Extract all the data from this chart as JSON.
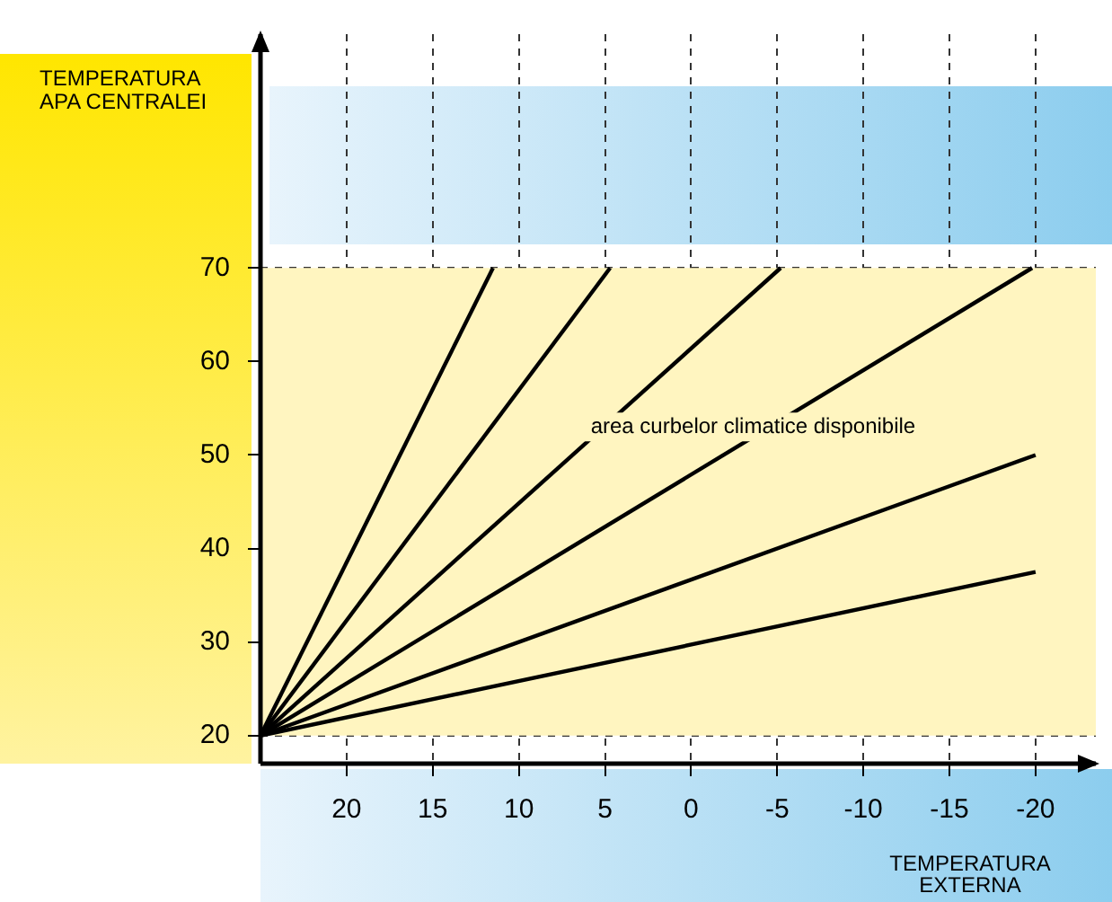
{
  "chart_data": {
    "type": "line",
    "xlabel": "TEMPERATURA\nEXTERNA",
    "ylabel": "TEMPERATURA\nAPA CENTRALEI",
    "xlim": [
      25,
      -23.5
    ],
    "xticks": [
      20,
      15,
      10,
      5,
      0,
      -5,
      -10,
      -15,
      -20
    ],
    "ylim": [
      17,
      95
    ],
    "yticks": [
      20,
      30,
      40,
      50,
      60,
      70
    ],
    "grid": true,
    "legend": false,
    "marker": "none",
    "line_style": "solid",
    "series": [
      {
        "color": "#000000",
        "x": [
          25,
          11.5
        ],
        "values": [
          20,
          70
        ]
      },
      {
        "color": "#000000",
        "x": [
          25,
          4.7
        ],
        "values": [
          20,
          70
        ]
      },
      {
        "color": "#000000",
        "x": [
          25,
          -5.2
        ],
        "values": [
          20,
          70
        ]
      },
      {
        "color": "#000000",
        "x": [
          25,
          -19.8
        ],
        "values": [
          20,
          70
        ]
      },
      {
        "color": "#000000",
        "x": [
          25,
          -20
        ],
        "values": [
          20,
          50
        ]
      },
      {
        "color": "#000000",
        "x": [
          25,
          -20
        ],
        "values": [
          20,
          37.5
        ]
      }
    ],
    "bands": [
      {
        "axis": "y",
        "from": 20,
        "to": 70,
        "color": "#fff5c0"
      }
    ],
    "annotations": [
      {
        "text": "area curbelor climatice disponibile",
        "x": -3.6,
        "y": 53
      }
    ]
  }
}
